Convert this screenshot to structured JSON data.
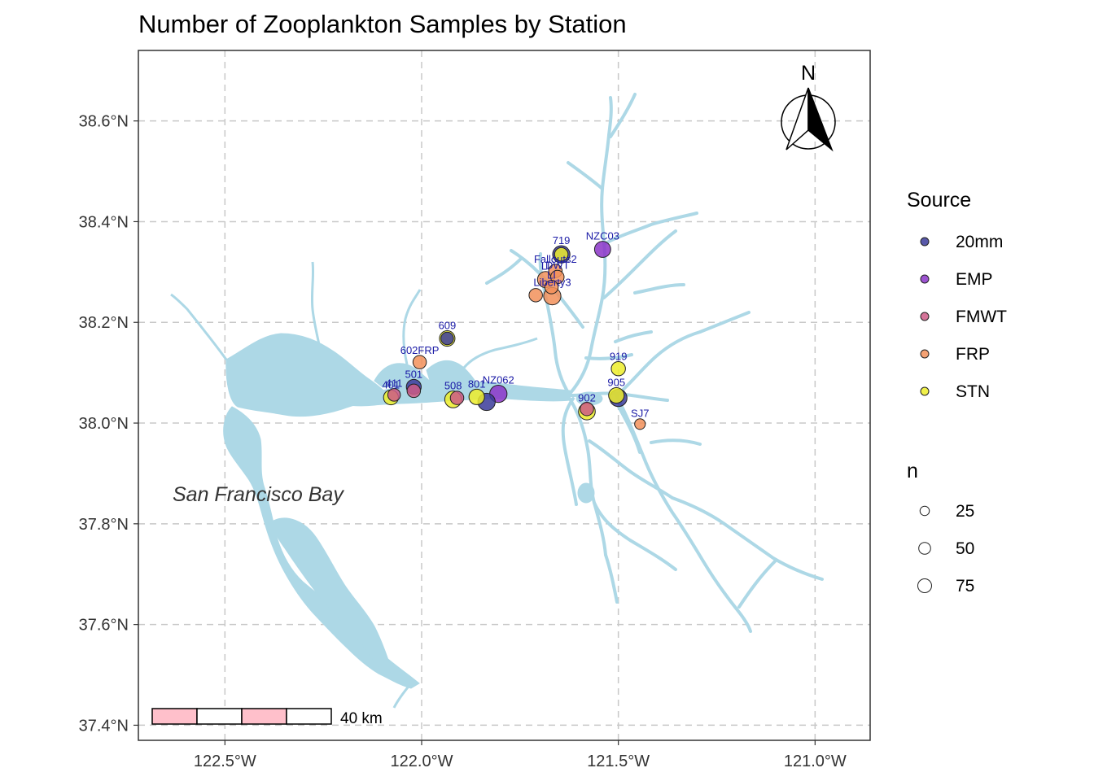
{
  "title": "Number of Zooplankton Samples by Station",
  "colors": {
    "water": "#add8e6",
    "grid": "#c8c8c8",
    "panel_border": "#333333",
    "label": "#1a1aa6",
    "scale_fill": "#ffc0cb"
  },
  "axes": {
    "x_ticks": [
      {
        "value": -122.5,
        "label": "122.5°W"
      },
      {
        "value": -122.0,
        "label": "122.0°W"
      },
      {
        "value": -121.5,
        "label": "121.5°W"
      },
      {
        "value": -121.0,
        "label": "121.0°W"
      }
    ],
    "y_ticks": [
      {
        "value": 37.4,
        "label": "37.4°N"
      },
      {
        "value": 37.6,
        "label": "37.6°N"
      },
      {
        "value": 37.8,
        "label": "37.8°N"
      },
      {
        "value": 38.0,
        "label": "38.0°N"
      },
      {
        "value": 38.2,
        "label": "38.2°N"
      },
      {
        "value": 38.4,
        "label": "38.4°N"
      },
      {
        "value": 38.6,
        "label": "38.6°N"
      }
    ]
  },
  "bay_label": "San Francisco Bay",
  "north_arrow": {
    "label": "N"
  },
  "scale_bar": {
    "label": "40 km"
  },
  "legend": {
    "source": {
      "title": "Source",
      "items": [
        {
          "label": "20mm",
          "color": "#3b3b9a"
        },
        {
          "label": "EMP",
          "color": "#8b35c8"
        },
        {
          "label": "FMWT",
          "color": "#cc5a86"
        },
        {
          "label": "FRP",
          "color": "#f2905a"
        },
        {
          "label": "STN",
          "color": "#eded2a"
        }
      ]
    },
    "size": {
      "title": "n",
      "items": [
        {
          "label": "25",
          "value": 25
        },
        {
          "label": "50",
          "value": 50
        },
        {
          "label": "75",
          "value": 75
        }
      ]
    }
  },
  "chart_data": {
    "type": "scatter",
    "title": "Number of Zooplankton Samples by Station",
    "xlim": [
      -122.72,
      -120.86
    ],
    "ylim": [
      37.37,
      38.74
    ],
    "stations": [
      {
        "label": "719",
        "lon": -121.645,
        "lat": 38.335,
        "source": "20mm",
        "n": 60
      },
      {
        "label": "",
        "lon": -121.645,
        "lat": 38.335,
        "source": "STN",
        "n": 30
      },
      {
        "label": "NZC03",
        "lon": -121.54,
        "lat": 38.345,
        "source": "EMP",
        "n": 50
      },
      {
        "label": "Fallouts2",
        "lon": -121.66,
        "lat": 38.302,
        "source": "FRP",
        "n": 30
      },
      {
        "label": "DWT",
        "lon": -121.655,
        "lat": 38.29,
        "source": "FRP",
        "n": 30
      },
      {
        "label": "LI",
        "lon": -121.685,
        "lat": 38.285,
        "source": "FRP",
        "n": 50
      },
      {
        "label": "LI",
        "lon": -121.67,
        "lat": 38.27,
        "source": "FRP",
        "n": 30
      },
      {
        "label": "Liberty3",
        "lon": -121.668,
        "lat": 38.252,
        "source": "FRP",
        "n": 60
      },
      {
        "label": "",
        "lon": -121.71,
        "lat": 38.254,
        "source": "FRP",
        "n": 30
      },
      {
        "label": "609",
        "lon": -121.935,
        "lat": 38.168,
        "source": "STN",
        "n": 45
      },
      {
        "label": "",
        "lon": -121.935,
        "lat": 38.168,
        "source": "20mm",
        "n": 25
      },
      {
        "label": "602FRP",
        "lon": -122.005,
        "lat": 38.121,
        "source": "FRP",
        "n": 30
      },
      {
        "label": "501",
        "lon": -122.02,
        "lat": 38.072,
        "source": "20mm",
        "n": 40
      },
      {
        "label": "",
        "lon": -122.02,
        "lat": 38.064,
        "source": "FMWT",
        "n": 30
      },
      {
        "label": "411",
        "lon": -122.07,
        "lat": 38.056,
        "source": "FMWT",
        "n": 25
      },
      {
        "label": "401",
        "lon": -122.078,
        "lat": 38.051,
        "source": "STN",
        "n": 40
      },
      {
        "label": "508",
        "lon": -121.92,
        "lat": 38.047,
        "source": "STN",
        "n": 55
      },
      {
        "label": "",
        "lon": -121.91,
        "lat": 38.05,
        "source": "FMWT",
        "n": 30
      },
      {
        "label": "801",
        "lon": -121.86,
        "lat": 38.052,
        "source": "STN",
        "n": 45
      },
      {
        "label": "NZ062",
        "lon": -121.805,
        "lat": 38.058,
        "source": "EMP",
        "n": 60
      },
      {
        "label": "",
        "lon": -121.835,
        "lat": 38.042,
        "source": "20mm",
        "n": 60
      },
      {
        "label": "919",
        "lon": -121.5,
        "lat": 38.108,
        "source": "STN",
        "n": 35
      },
      {
        "label": "905",
        "lon": -121.505,
        "lat": 38.055,
        "source": "STN",
        "n": 45
      },
      {
        "label": "",
        "lon": -121.5,
        "lat": 38.05,
        "source": "20mm",
        "n": 60
      },
      {
        "label": "902",
        "lon": -121.58,
        "lat": 38.023,
        "source": "STN",
        "n": 55
      },
      {
        "label": "",
        "lon": -121.58,
        "lat": 38.028,
        "source": "FMWT",
        "n": 30
      },
      {
        "label": "SJ7",
        "lon": -121.445,
        "lat": 37.998,
        "source": "FRP",
        "n": 15
      }
    ]
  }
}
